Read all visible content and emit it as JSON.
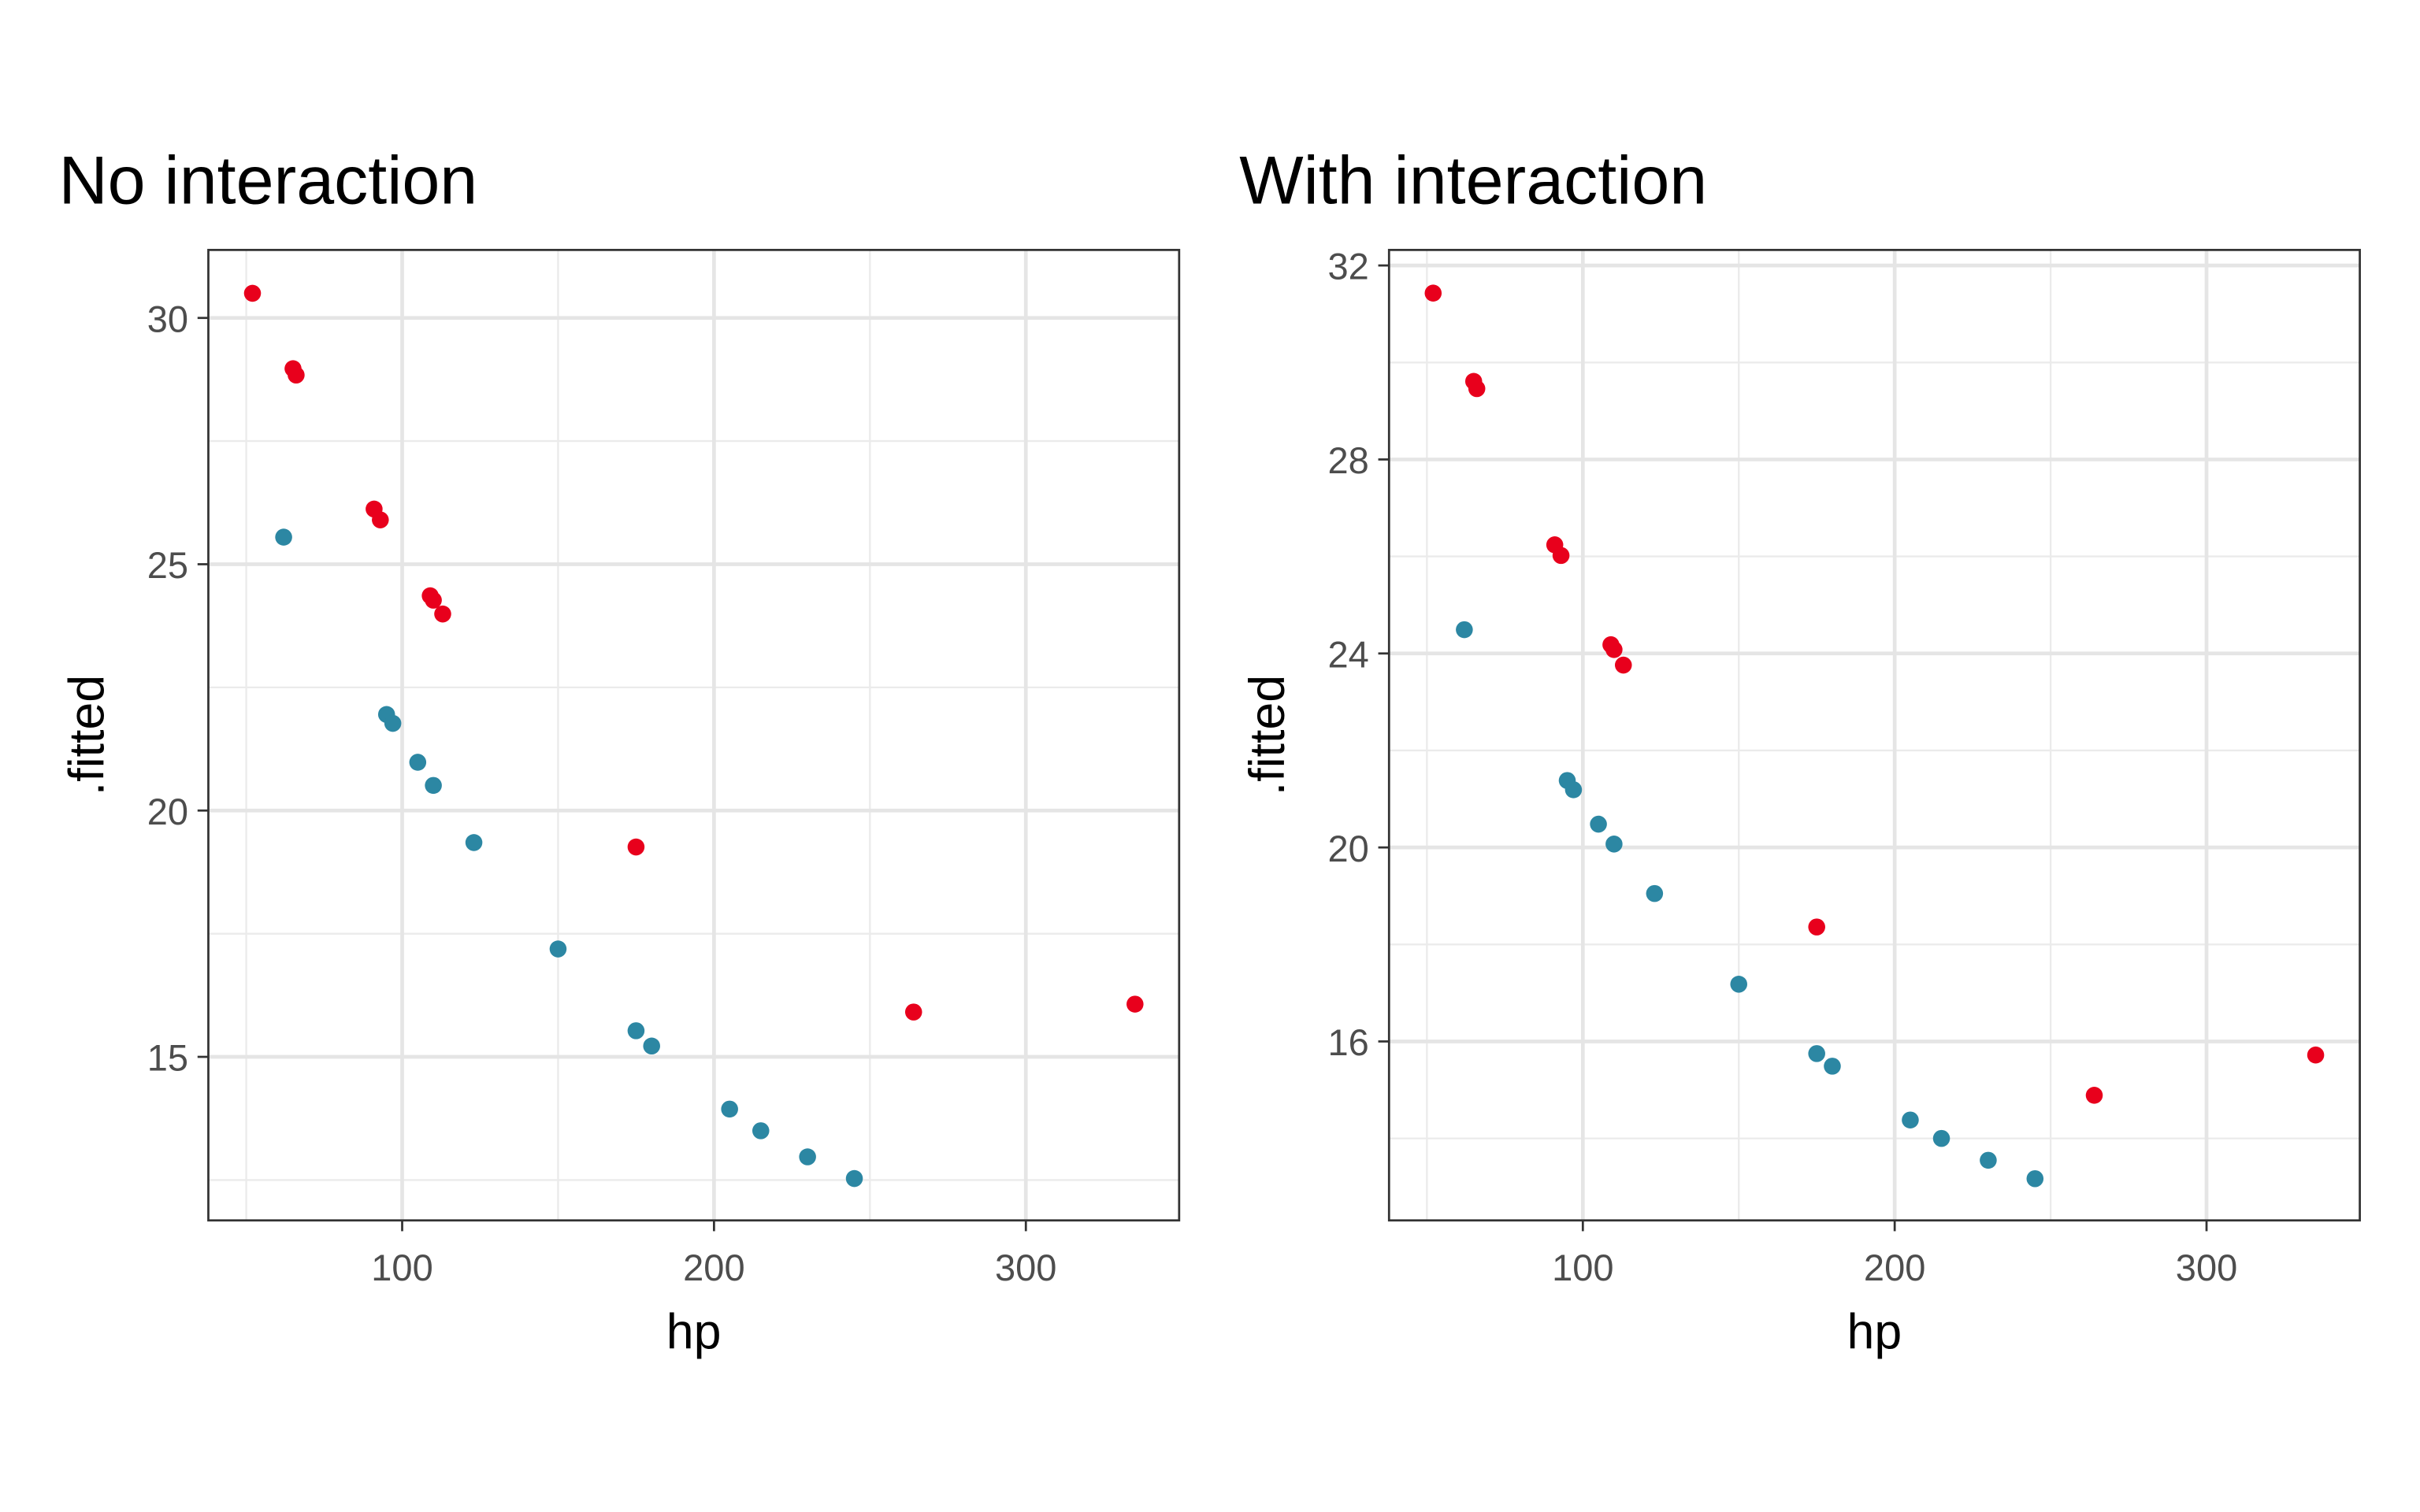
{
  "chart_data": [
    {
      "type": "scatter",
      "title": "No interaction",
      "x_label": "hp",
      "y_label": ".fitted",
      "xlim": [
        37.85,
        349.15
      ],
      "xticks": [
        100,
        200,
        300
      ],
      "ylim": [
        11.68,
        31.38
      ],
      "yticks": [
        15,
        20,
        25,
        30
      ],
      "grid": true,
      "minor_grid": true,
      "series": [
        {
          "color": "#e8001c",
          "x": [
            52,
            65,
            66,
            91,
            93,
            109,
            110,
            113,
            175,
            264,
            335
          ],
          "values": [
            30.5,
            28.97,
            28.84,
            26.12,
            25.9,
            24.36,
            24.27,
            23.99,
            19.26,
            15.91,
            16.07
          ]
        },
        {
          "color": "#2c87a3",
          "x": [
            62,
            95,
            97,
            105,
            110,
            123,
            150,
            175,
            180,
            205,
            215,
            230,
            245
          ],
          "values": [
            25.55,
            21.95,
            21.77,
            20.98,
            20.51,
            19.35,
            17.19,
            15.53,
            15.22,
            13.94,
            13.5,
            12.97,
            12.53
          ]
        }
      ]
    },
    {
      "type": "scatter",
      "title": "With interaction",
      "x_label": "hp",
      "y_label": ".fitted",
      "xlim": [
        37.85,
        349.15
      ],
      "xticks": [
        100,
        200,
        300
      ],
      "ylim": [
        12.31,
        32.32
      ],
      "yticks": [
        16,
        20,
        24,
        28,
        32
      ],
      "grid": true,
      "minor_grid": true,
      "series": [
        {
          "color": "#e8001c",
          "x": [
            52,
            65,
            66,
            91,
            93,
            109,
            110,
            113,
            175,
            264,
            335
          ],
          "values": [
            31.43,
            29.61,
            29.46,
            26.24,
            26.02,
            24.18,
            24.08,
            23.76,
            18.36,
            14.89,
            15.72
          ]
        },
        {
          "color": "#2c87a3",
          "x": [
            62,
            95,
            97,
            105,
            110,
            123,
            150,
            175,
            180,
            205,
            215,
            230,
            245
          ],
          "values": [
            24.49,
            21.38,
            21.19,
            20.48,
            20.07,
            19.05,
            17.18,
            15.75,
            15.49,
            14.38,
            14.0,
            13.55,
            13.17
          ]
        }
      ]
    }
  ]
}
